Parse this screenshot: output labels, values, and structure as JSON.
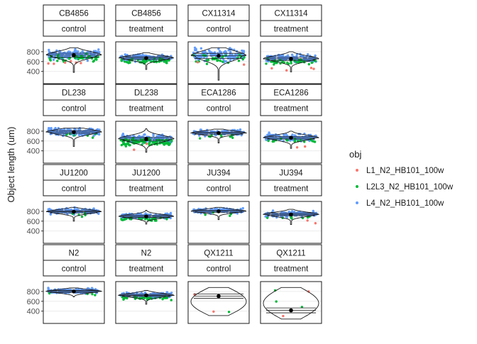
{
  "chart_data": {
    "type": "violin",
    "ylabel": "Object length (um)",
    "y_ticks": [
      400,
      600,
      800
    ],
    "ylim": [
      150,
      1000
    ],
    "legend": {
      "title": "obj",
      "position": "right",
      "items": [
        {
          "label": "L1_N2_HB101_100w",
          "color": "#F8766D"
        },
        {
          "label": "L2L3_N2_HB101_100w",
          "color": "#00BA38"
        },
        {
          "label": "L4_N2_HB101_100w",
          "color": "#619CFF"
        }
      ]
    },
    "panels": [
      {
        "strain": "CB4856",
        "condition": "control",
        "mean": 730,
        "range": [
          380,
          880
        ],
        "n": [
          6,
          40,
          160
        ]
      },
      {
        "strain": "CB4856",
        "condition": "treatment",
        "mean": 670,
        "range": [
          440,
          780
        ],
        "n": [
          0,
          45,
          150
        ]
      },
      {
        "strain": "CX11314",
        "condition": "control",
        "mean": 715,
        "range": [
          220,
          880
        ],
        "n": [
          2,
          30,
          150
        ]
      },
      {
        "strain": "CX11314",
        "condition": "treatment",
        "mean": 655,
        "range": [
          390,
          800
        ],
        "n": [
          4,
          40,
          140
        ]
      },
      {
        "strain": "DL238",
        "condition": "control",
        "mean": 780,
        "range": [
          490,
          860
        ],
        "n": [
          0,
          6,
          150
        ]
      },
      {
        "strain": "DL238",
        "condition": "treatment",
        "mean": 640,
        "range": [
          370,
          850
        ],
        "n": [
          2,
          90,
          140
        ]
      },
      {
        "strain": "ECA1286",
        "condition": "control",
        "mean": 760,
        "range": [
          560,
          840
        ],
        "n": [
          0,
          10,
          140
        ]
      },
      {
        "strain": "ECA1286",
        "condition": "treatment",
        "mean": 665,
        "range": [
          450,
          800
        ],
        "n": [
          2,
          20,
          140
        ]
      },
      {
        "strain": "JU1200",
        "condition": "control",
        "mean": 790,
        "range": [
          600,
          880
        ],
        "n": [
          0,
          5,
          150
        ]
      },
      {
        "strain": "JU1200",
        "condition": "treatment",
        "mean": 695,
        "range": [
          540,
          820
        ],
        "n": [
          0,
          30,
          140
        ]
      },
      {
        "strain": "JU394",
        "condition": "control",
        "mean": 800,
        "range": [
          630,
          880
        ],
        "n": [
          0,
          4,
          150
        ]
      },
      {
        "strain": "JU394",
        "condition": "treatment",
        "mean": 735,
        "range": [
          530,
          840
        ],
        "n": [
          2,
          8,
          140
        ]
      },
      {
        "strain": "N2",
        "condition": "control",
        "mean": 800,
        "range": [
          690,
          870
        ],
        "n": [
          0,
          4,
          150
        ]
      },
      {
        "strain": "N2",
        "condition": "treatment",
        "mean": 720,
        "range": [
          540,
          820
        ],
        "n": [
          0,
          30,
          140
        ]
      },
      {
        "strain": "QX1211",
        "condition": "control",
        "mean": 705,
        "range": [
          310,
          880
        ],
        "n": [
          2,
          1,
          0
        ]
      },
      {
        "strain": "QX1211",
        "condition": "treatment",
        "mean": 415,
        "range": [
          240,
          880
        ],
        "n": [
          2,
          3,
          0
        ]
      }
    ]
  }
}
